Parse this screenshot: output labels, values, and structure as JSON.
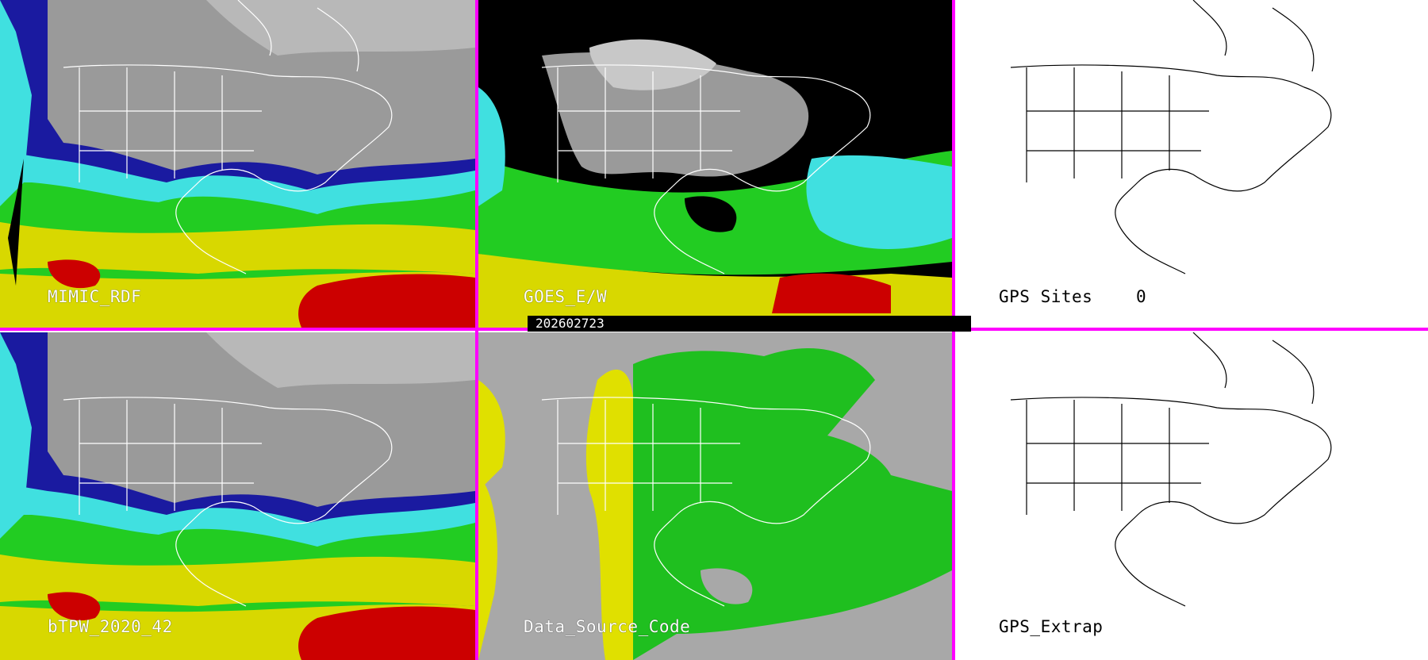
{
  "panels": {
    "mimic": {
      "label": "MIMIC_RDF"
    },
    "goes": {
      "label": "GOES_E/W"
    },
    "gps_sites": {
      "label": "GPS Sites",
      "count": "0"
    },
    "btpw": {
      "label": "bTPW_2020_42"
    },
    "data_source": {
      "label": "Data_Source_Code"
    },
    "gps_extrap": {
      "label": "GPS_Extrap"
    }
  },
  "timestamp": "202602723",
  "colors": {
    "divider": "#ff00ff",
    "tpw_dry": "#9a9a9a",
    "tpw_low": "#1a1aa0",
    "tpw_mid": "#40e0e0",
    "tpw_green": "#22cc22",
    "tpw_yellow": "#d8d800",
    "tpw_high": "#cc0000",
    "source_green": "#1fbf1f",
    "source_yellow": "#e0e000",
    "source_gray": "#a8a8a8"
  }
}
